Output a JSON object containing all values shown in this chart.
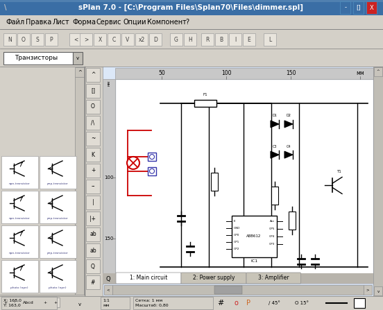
{
  "title": "sPlan 7.0 - [C:\\Program Files\\Splan70\\Files\\dimmer.spl]",
  "bg_title": "#3a6ea5",
  "menu_items": [
    "Файл",
    "Правка",
    "Лист",
    "Форма",
    "Сервис",
    "Опции",
    "Компонент",
    "?"
  ],
  "tab_labels": [
    "1: Main circuit",
    "2: Power supply",
    "3: Amplifier"
  ],
  "toolbar_bg": "#d4d0c8",
  "titlebar_text_color": "#ffffff",
  "statusbar_bg": "#d4d0c8",
  "tab_bg_active": "#ffffff",
  "tab_bg_inactive": "#c8c4b8",
  "dropdown_label": "Транзисторы",
  "circuit_line_color": "#000000",
  "circuit_red_color": "#cc0000",
  "window_frame": "#0a246a"
}
